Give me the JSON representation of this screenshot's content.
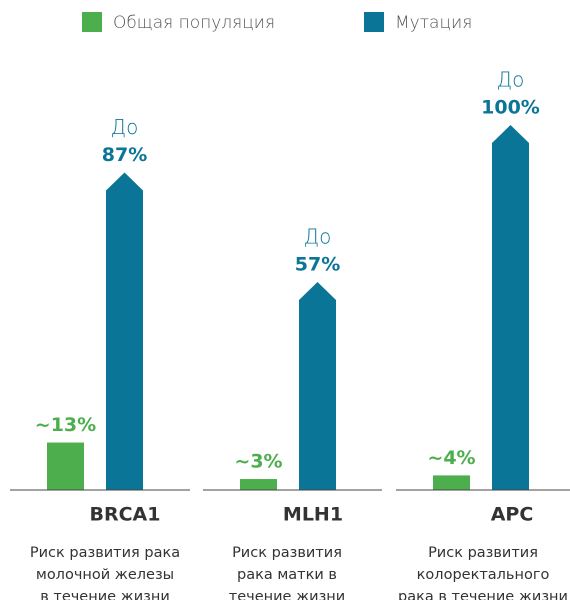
{
  "chart_data": {
    "type": "bar",
    "categories": [
      "BRCA1",
      "MLH1",
      "APC"
    ],
    "descriptions": [
      [
        "Риск развития рака",
        "молочной железы",
        "в течение жизни"
      ],
      [
        "Риск развития",
        "рака матки в",
        "течение жизни"
      ],
      [
        "Риск развития",
        "колоректального",
        "рака в течение жизни"
      ]
    ],
    "value_label_prefix": "До",
    "series": [
      {
        "name": "Общая популяция",
        "color": "#4cae4c",
        "values": [
          13,
          3,
          4
        ],
        "value_labels": [
          "~13%",
          "~3%",
          "~4%"
        ]
      },
      {
        "name": "Мутация",
        "color": "#0b7597",
        "values": [
          87,
          57,
          100
        ],
        "value_labels": [
          "87%",
          "57%",
          "100%"
        ]
      }
    ],
    "legend": "top"
  }
}
